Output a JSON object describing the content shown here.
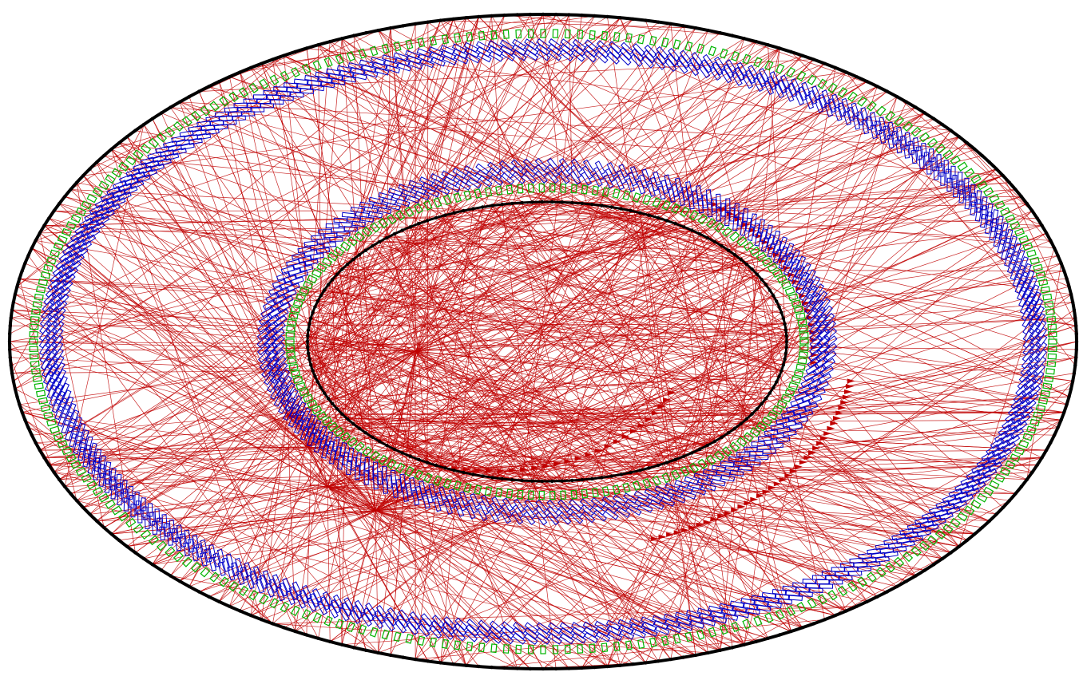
{
  "diagram": {
    "kind": "circular network graph",
    "colors": {
      "background": "#ffffff",
      "edges": "#c00000",
      "node_outline": "#000000",
      "label_blue": "#0000c8",
      "label_green": "#00b400"
    },
    "rings": [
      {
        "name": "outer-ring",
        "layer": "outer",
        "node_count": 260
      },
      {
        "name": "inner-ring",
        "layer": "inner",
        "node_count": 150
      }
    ],
    "edge_count": 900
  }
}
